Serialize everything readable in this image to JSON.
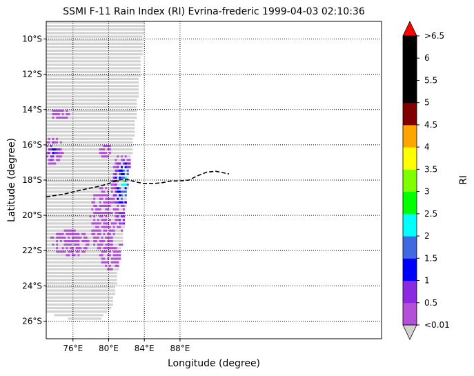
{
  "chart_data": {
    "type": "heatmap",
    "title": "SSMI F-11 Rain Index (RI) Evrina-frederic 1999-04-03 02:10:36",
    "xlabel": "Longitude (degree)",
    "ylabel": "Latitude (degree)",
    "xlim": [
      73.0,
      110.6
    ],
    "ylim": [
      -27.0,
      -9.0
    ],
    "x_ticks": [
      {
        "value": 76,
        "label": "76°E"
      },
      {
        "value": 80,
        "label": "80°E"
      },
      {
        "value": 84,
        "label": "84°E"
      },
      {
        "value": 88,
        "label": "88°E"
      }
    ],
    "y_ticks": [
      {
        "value": -10,
        "label": "10°S"
      },
      {
        "value": -12,
        "label": "12°S"
      },
      {
        "value": -14,
        "label": "14°S"
      },
      {
        "value": -16,
        "label": "16°S"
      },
      {
        "value": -18,
        "label": "18°S"
      },
      {
        "value": -20,
        "label": "20°S"
      },
      {
        "value": -22,
        "label": "22°S"
      },
      {
        "value": -24,
        "label": "24°S"
      },
      {
        "value": -26,
        "label": "26°S"
      }
    ],
    "grid": "dotted",
    "colorbar": {
      "label": "RI",
      "extend": "both",
      "under_color": "#d3d3d3",
      "over_color": "#ff0000",
      "bins": [
        {
          "color": "#b450d7"
        },
        {
          "color": "#8a2be2"
        },
        {
          "color": "#0000ff"
        },
        {
          "color": "#4169e1"
        },
        {
          "color": "#00ffff"
        },
        {
          "color": "#00ff00"
        },
        {
          "color": "#7fff00"
        },
        {
          "color": "#ffff00"
        },
        {
          "color": "#ffa500"
        },
        {
          "color": "#800000"
        },
        {
          "color": "#000000"
        },
        {
          "color": "#000000"
        },
        {
          "color": "#000000"
        }
      ],
      "tick_labels": [
        "<0.01",
        "0.5",
        "1",
        "1.5",
        "2",
        "2.5",
        "3",
        "3.5",
        "4",
        "4.5",
        "5",
        "5.5",
        "6",
        ">6.5"
      ]
    },
    "swath": {
      "left_lon": 73.0,
      "right_edge": [
        [
          -9.0,
          83.9
        ],
        [
          -14.0,
          83.0
        ],
        [
          -18.0,
          82.1
        ],
        [
          -22.0,
          81.3
        ],
        [
          -25.0,
          80.3
        ]
      ],
      "bottom_edge": [
        [
          73.0,
          -25.5
        ],
        [
          76.0,
          -25.9
        ],
        [
          79.0,
          -25.8
        ],
        [
          80.5,
          -25.0
        ]
      ]
    },
    "storm_track": {
      "lon": [
        73.0,
        75.0,
        77.0,
        79.0,
        80.0,
        81.0,
        82.0,
        83.0,
        84.0,
        85.0,
        86.0,
        87.0,
        88.0,
        89.0,
        90.0,
        91.0,
        92.0,
        93.5
      ],
      "lat": [
        -18.95,
        -18.8,
        -18.55,
        -18.35,
        -18.2,
        -18.0,
        -17.95,
        -18.1,
        -18.2,
        -18.2,
        -18.15,
        -18.05,
        -18.05,
        -18.0,
        -17.75,
        -17.55,
        -17.5,
        -17.65
      ]
    },
    "rain_clusters": [
      {
        "center_lon": 81.6,
        "center_lat": -18.2,
        "dlon": 1.5,
        "dlat": 1.8,
        "bins": [
          0,
          1,
          2,
          3,
          4,
          6
        ]
      },
      {
        "center_lon": 81.8,
        "center_lat": -20.0,
        "dlon": 1.3,
        "dlat": 0.9,
        "bins": [
          0,
          1,
          2
        ]
      },
      {
        "center_lon": 73.7,
        "center_lat": -16.3,
        "dlon": 1.1,
        "dlat": 0.8,
        "bins": [
          0,
          1,
          2
        ]
      },
      {
        "center_lon": 75.5,
        "center_lat": -21.5,
        "dlon": 2.3,
        "dlat": 0.8,
        "bins": [
          0
        ]
      },
      {
        "center_lon": 80.8,
        "center_lat": -22.3,
        "dlon": 1.8,
        "dlat": 0.9,
        "bins": [
          0
        ]
      },
      {
        "center_lon": 79.2,
        "center_lat": -20.3,
        "dlon": 1.4,
        "dlat": 2.0,
        "bins": [
          0
        ]
      },
      {
        "center_lon": 74.5,
        "center_lat": -14.2,
        "dlon": 1.0,
        "dlat": 0.4,
        "bins": [
          0
        ]
      },
      {
        "center_lon": 79.5,
        "center_lat": -16.3,
        "dlon": 0.7,
        "dlat": 0.5,
        "bins": [
          0
        ]
      }
    ]
  }
}
